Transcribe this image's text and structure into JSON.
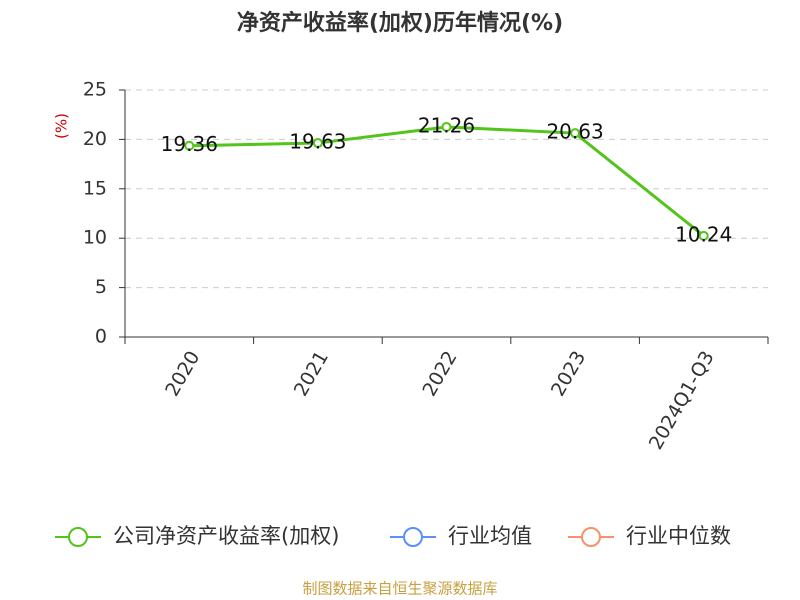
{
  "chart_data": {
    "type": "line",
    "title": "净资产收益率(加权)历年情况(%)",
    "y_label": "(%)",
    "categories": [
      "2020",
      "2021",
      "2022",
      "2023",
      "2024Q1-Q3"
    ],
    "series": [
      {
        "name": "公司净资产收益率(加权)",
        "color": "#52c41a",
        "values": [
          19.36,
          19.63,
          21.26,
          20.63,
          10.24
        ]
      },
      {
        "name": "行业均值",
        "color": "#5b8ff9",
        "values": [
          null,
          null,
          null,
          null,
          null
        ]
      },
      {
        "name": "行业中位数",
        "color": "#f6926a",
        "values": [
          null,
          null,
          null,
          null,
          null
        ]
      }
    ],
    "ylim": [
      0,
      25
    ],
    "yticks": [
      0,
      5,
      10,
      15,
      20,
      25
    ],
    "grid": true,
    "source": "制图数据来自恒生聚源数据库"
  }
}
